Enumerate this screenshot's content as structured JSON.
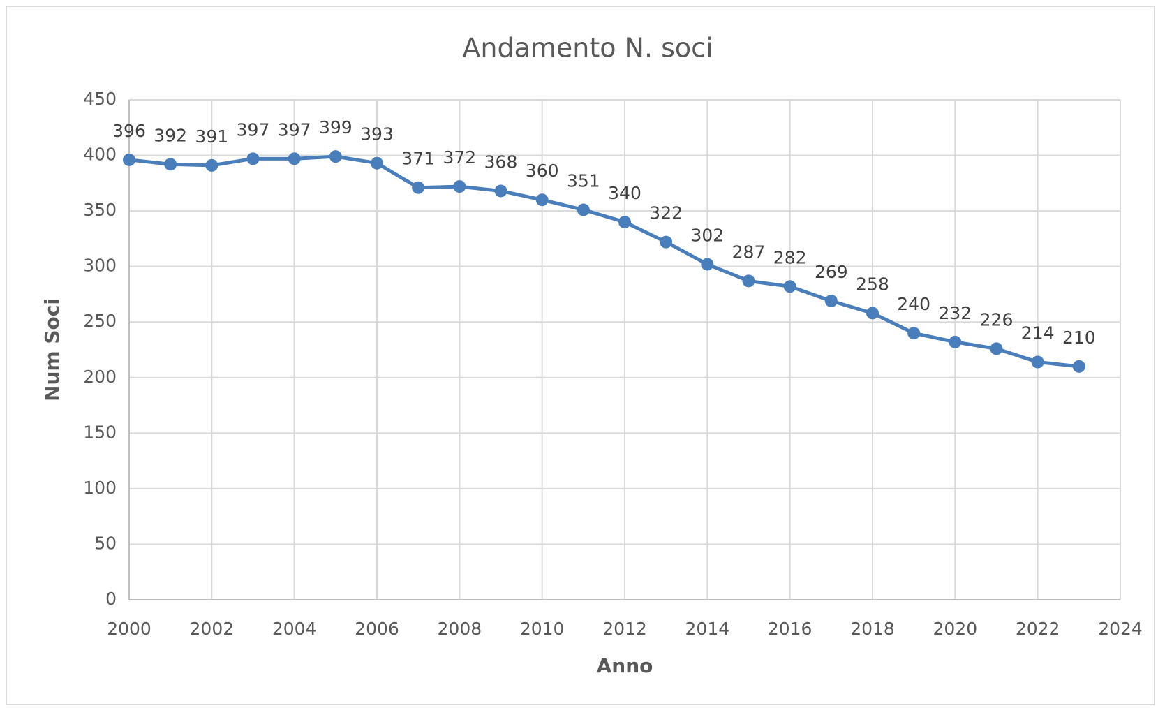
{
  "chart_data": {
    "type": "line",
    "title": "Andamento N. soci",
    "x_label": "Anno",
    "y_label": "Num Soci",
    "x": [
      2000,
      2001,
      2002,
      2003,
      2004,
      2005,
      2006,
      2007,
      2008,
      2009,
      2010,
      2011,
      2012,
      2013,
      2014,
      2015,
      2016,
      2017,
      2018,
      2019,
      2020,
      2021,
      2022,
      2023
    ],
    "series": [
      {
        "name": "Num Soci",
        "color": "#4a7ebb",
        "values": [
          396,
          392,
          391,
          397,
          397,
          399,
          393,
          371,
          372,
          368,
          360,
          351,
          340,
          322,
          302,
          287,
          282,
          269,
          258,
          240,
          232,
          226,
          214,
          210
        ]
      }
    ],
    "xlim": [
      2000,
      2024
    ],
    "xticks": [
      2000,
      2002,
      2004,
      2006,
      2008,
      2010,
      2012,
      2014,
      2016,
      2018,
      2020,
      2022,
      2024
    ],
    "ylim": [
      0,
      450
    ],
    "yticks": [
      0,
      50,
      100,
      150,
      200,
      250,
      300,
      350,
      400,
      450
    ],
    "grid": true
  }
}
